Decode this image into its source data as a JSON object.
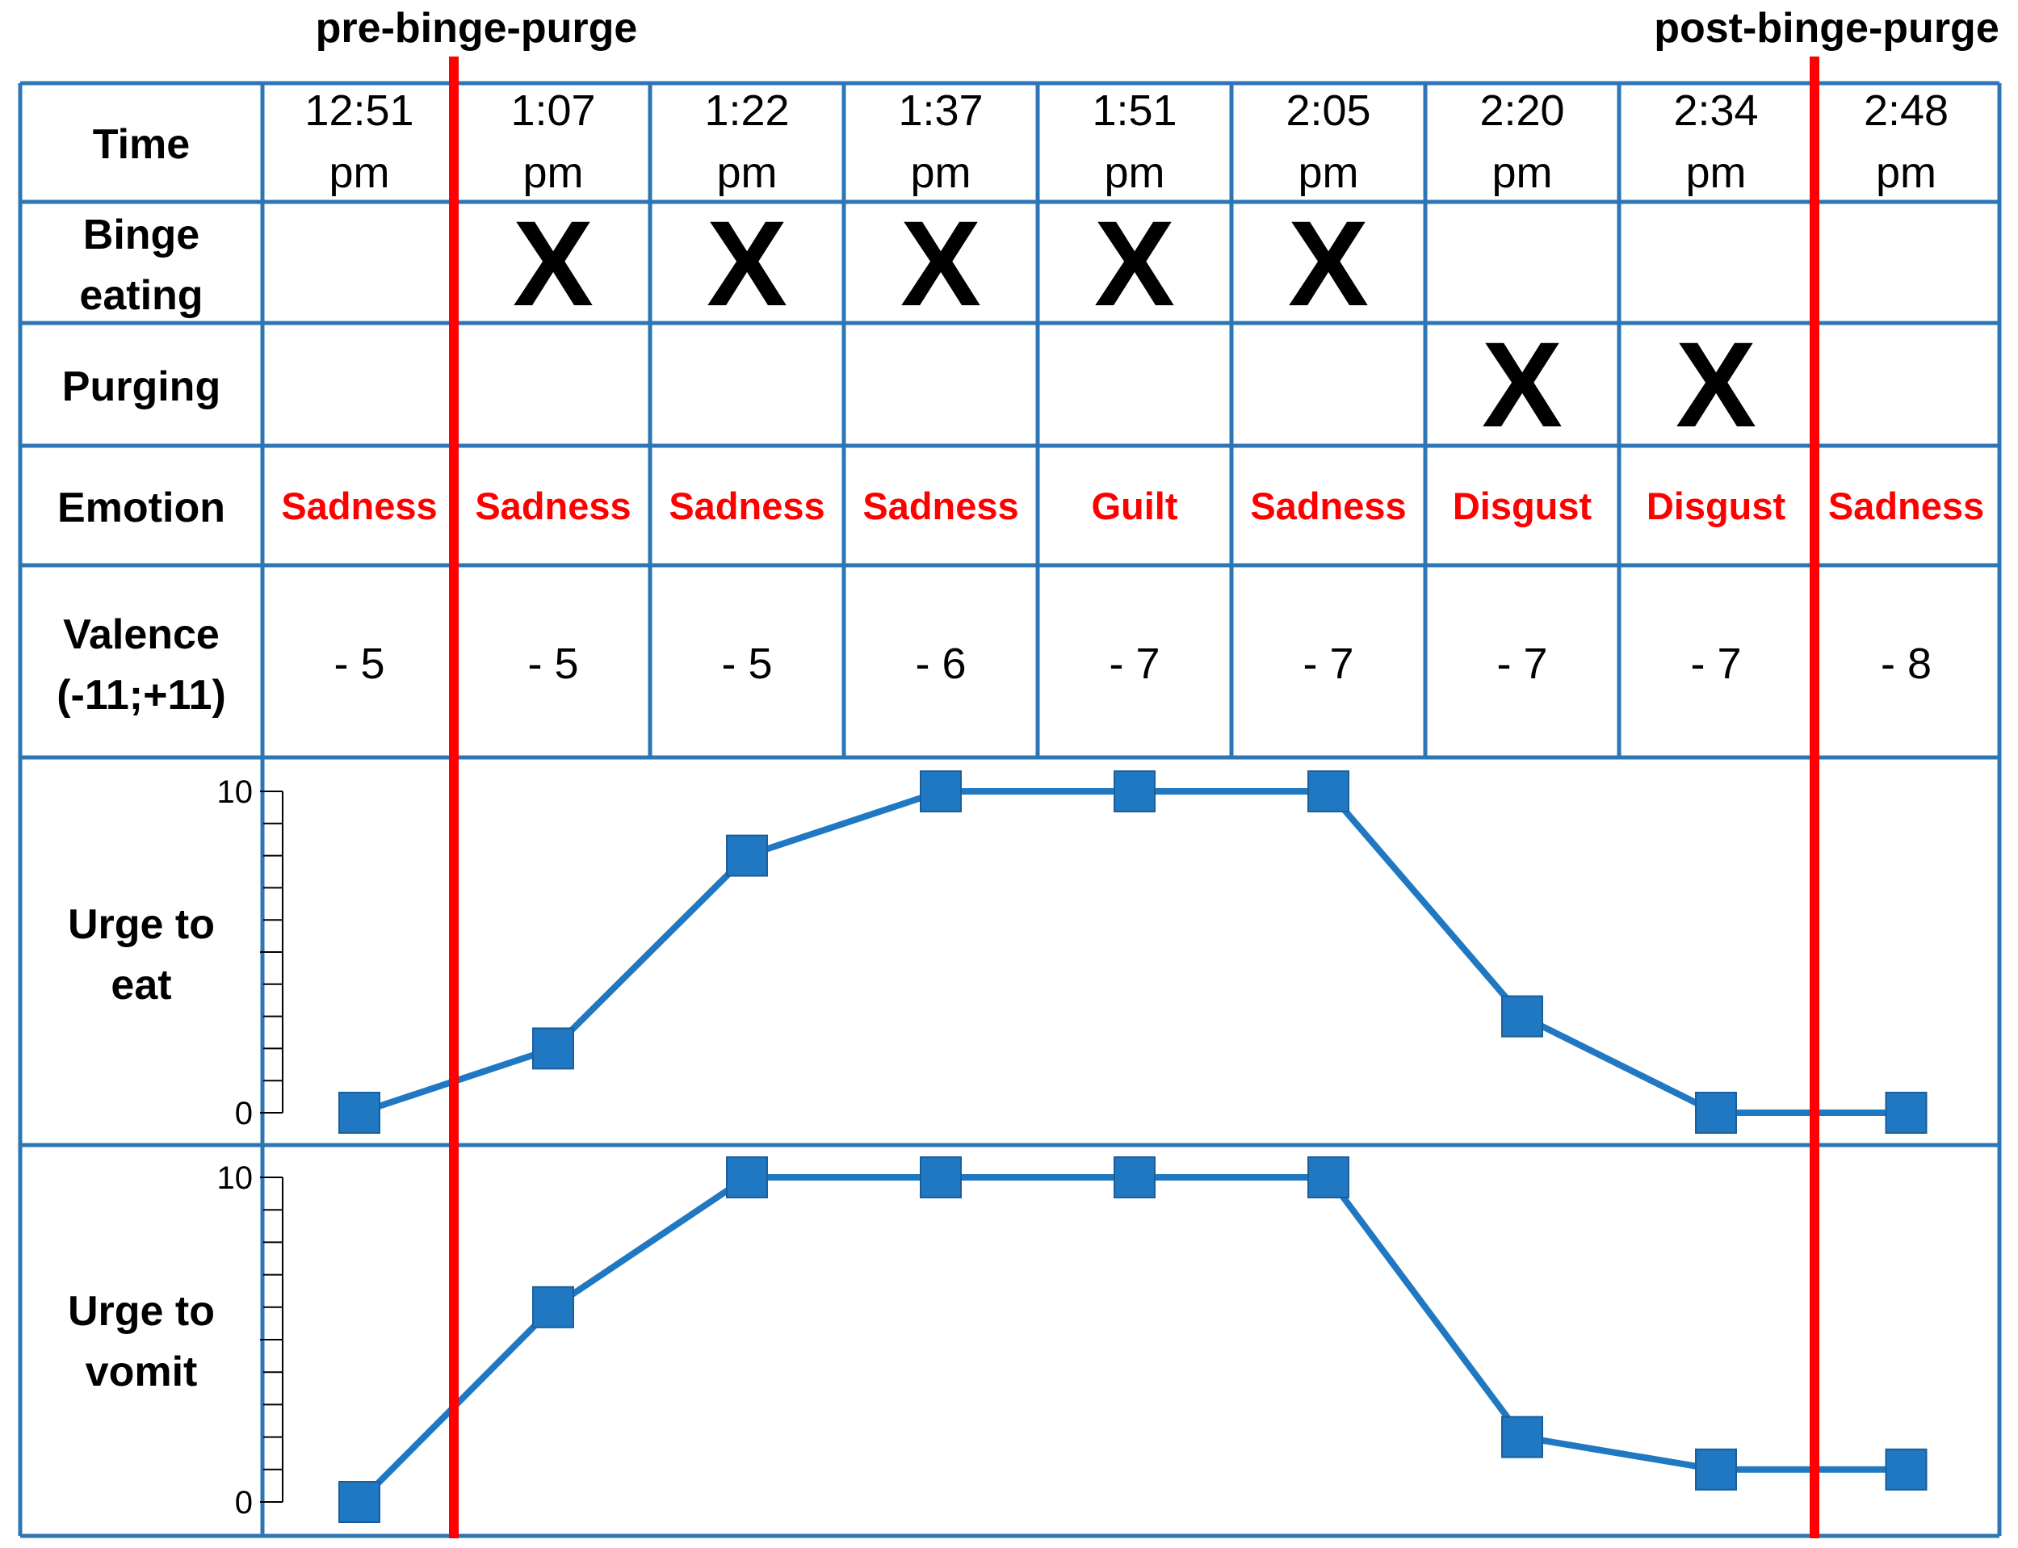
{
  "markers": {
    "pre": "pre-binge-purge",
    "post": "post-binge-purge"
  },
  "rows": {
    "time": "Time",
    "binge": [
      "Binge",
      "eating"
    ],
    "purging": "Purging",
    "emotion": "Emotion",
    "valence": [
      "Valence",
      "(-11;+11)"
    ],
    "urge_eat": [
      "Urge to",
      "eat"
    ],
    "urge_vomit": [
      "Urge to",
      "vomit"
    ]
  },
  "columns": [
    {
      "time": "12:51",
      "ampm": "pm",
      "binge": "",
      "purge": "",
      "emotion": "Sadness",
      "valence": "- 5"
    },
    {
      "time": "1:07",
      "ampm": "pm",
      "binge": "X",
      "purge": "",
      "emotion": "Sadness",
      "valence": "- 5"
    },
    {
      "time": "1:22",
      "ampm": "pm",
      "binge": "X",
      "purge": "",
      "emotion": "Sadness",
      "valence": "- 5"
    },
    {
      "time": "1:37",
      "ampm": "pm",
      "binge": "X",
      "purge": "",
      "emotion": "Sadness",
      "valence": "- 6"
    },
    {
      "time": "1:51",
      "ampm": "pm",
      "binge": "X",
      "purge": "",
      "emotion": "Guilt",
      "valence": "- 7"
    },
    {
      "time": "2:05",
      "ampm": "pm",
      "binge": "X",
      "purge": "",
      "emotion": "Sadness",
      "valence": "- 7"
    },
    {
      "time": "2:20",
      "ampm": "pm",
      "binge": "",
      "purge": "X",
      "emotion": "Disgust",
      "valence": "- 7"
    },
    {
      "time": "2:34",
      "ampm": "pm",
      "binge": "",
      "purge": "X",
      "emotion": "Disgust",
      "valence": "- 7"
    },
    {
      "time": "2:48",
      "ampm": "pm",
      "binge": "",
      "purge": "",
      "emotion": "Sadness",
      "valence": "- 8"
    }
  ],
  "colors": {
    "grid": "#2e75b6",
    "series": "#1f78c1",
    "marker_line": "#ff0000",
    "emotion": "#ff0000"
  },
  "chart_data": [
    {
      "type": "line",
      "x": [
        "12:51 pm",
        "1:07 pm",
        "1:22 pm",
        "1:37 pm",
        "1:51 pm",
        "2:05 pm",
        "2:20 pm",
        "2:34 pm",
        "2:48 pm"
      ],
      "series": [
        {
          "values": [
            0,
            2,
            8,
            10,
            10,
            10,
            3,
            0,
            0
          ]
        }
      ],
      "ylim": [
        0,
        10
      ],
      "yticks": [
        "0",
        "10"
      ],
      "ylabel": "Urge to eat",
      "grid": false
    },
    {
      "type": "line",
      "x": [
        "12:51 pm",
        "1:07 pm",
        "1:22 pm",
        "1:37 pm",
        "1:51 pm",
        "2:05 pm",
        "2:20 pm",
        "2:34 pm",
        "2:48 pm"
      ],
      "series": [
        {
          "values": [
            0,
            6,
            10,
            10,
            10,
            10,
            2,
            1,
            1
          ]
        }
      ],
      "ylim": [
        0,
        10
      ],
      "yticks": [
        "0",
        "10"
      ],
      "ylabel": "Urge to vomit",
      "grid": false
    }
  ]
}
